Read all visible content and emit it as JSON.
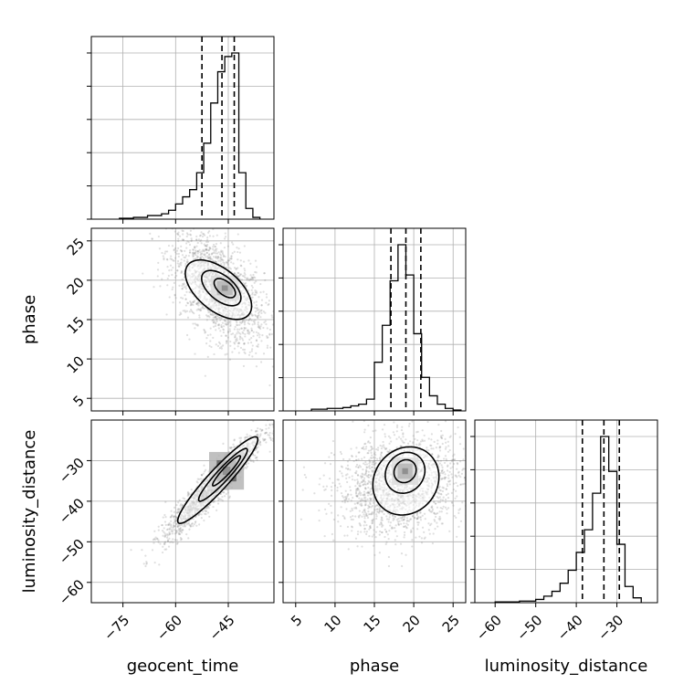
{
  "chart_data": {
    "type": "corner",
    "parameters": [
      "geocent_time",
      "phase",
      "luminosity_distance"
    ],
    "axis_labels": {
      "x": [
        "geocent_time",
        "phase",
        "luminosity_distance"
      ],
      "y": [
        "",
        "phase",
        "luminosity_distance"
      ]
    },
    "ranges": {
      "geocent_time": [
        -84,
        -32
      ],
      "phase": [
        3.4,
        26.6
      ],
      "luminosity_distance": [
        -65,
        -20
      ]
    },
    "ticks": {
      "geocent_time": [
        -75,
        -60,
        -45
      ],
      "phase": [
        5,
        10,
        15,
        20,
        25
      ],
      "luminosity_distance": [
        -60,
        -50,
        -40,
        -30
      ]
    },
    "tick_labels": {
      "geocent_time": [
        "−75",
        "−60",
        "−45"
      ],
      "phase": [
        "5",
        "10",
        "15",
        "20",
        "25"
      ],
      "luminosity_distance": [
        "−60",
        "−50",
        "−40",
        "−30"
      ]
    },
    "quantiles": {
      "geocent_time": [
        -52.5,
        -46.8,
        -43.3
      ],
      "phase": [
        17.1,
        19.0,
        20.9
      ],
      "luminosity_distance": [
        -38.5,
        -33.2,
        -29.4
      ]
    },
    "histograms": {
      "geocent_time": {
        "edges": [
          -76,
          -72,
          -68,
          -64,
          -62,
          -60,
          -58,
          -56,
          -54,
          -52,
          -50,
          -48,
          -46,
          -44,
          -42,
          -40,
          -38,
          -36
        ],
        "counts": [
          1,
          2,
          4,
          6,
          10,
          17,
          25,
          33,
          52,
          85,
          130,
          165,
          182,
          186,
          52,
          12,
          2
        ]
      },
      "phase": {
        "edges": [
          7,
          9,
          11,
          12,
          13,
          14,
          15,
          16,
          17,
          18,
          19,
          20,
          21,
          22,
          23,
          24,
          25,
          26
        ],
        "counts": [
          2,
          3,
          4,
          6,
          8,
          14,
          58,
          102,
          155,
          198,
          162,
          92,
          40,
          18,
          8,
          3,
          1
        ]
      },
      "luminosity_distance": {
        "edges": [
          -60,
          -54,
          -50,
          -48,
          -46,
          -44,
          -42,
          -40,
          -38,
          -36,
          -34,
          -32,
          -30,
          -28,
          -26,
          -24
        ],
        "counts": [
          1,
          2,
          4,
          8,
          14,
          24,
          40,
          62,
          90,
          135,
          205,
          162,
          72,
          20,
          6
        ]
      }
    },
    "scatter": [
      {
        "x_param": "geocent_time",
        "y_param": "phase",
        "mean": [
          -47.8,
          18.8
        ],
        "sd": [
          6.5,
          3.6
        ],
        "corr": -0.55,
        "points": 1800,
        "contour_levels": [
          {
            "mean": [
              -47.8,
              18.8
            ],
            "sd": [
              5.0,
              2.0
            ],
            "corr": -0.55,
            "k": 1.18
          },
          {
            "mean": [
              -47.0,
              19.0
            ],
            "sd": [
              5.0,
              2.0
            ],
            "corr": -0.55,
            "k": 0.7
          },
          {
            "mean": [
              -46.0,
              19.0
            ],
            "sd": [
              5.0,
              2.0
            ],
            "corr": -0.55,
            "k": 0.38
          }
        ]
      },
      {
        "x_param": "geocent_time",
        "y_param": "luminosity_distance",
        "mean": [
          -49.0,
          -36.0
        ],
        "sd": [
          7.0,
          6.5
        ],
        "corr": 0.94,
        "points": 1800,
        "contour_levels": [
          {
            "mean": [
              -48.0,
              -34.8
            ],
            "sd": [
              6.2,
              5.8
            ],
            "corr": 0.94,
            "k": 1.15
          },
          {
            "mean": [
              -46.5,
              -33.5
            ],
            "sd": [
              6.2,
              5.8
            ],
            "corr": 0.94,
            "k": 0.7
          },
          {
            "mean": [
              -45.5,
              -32.5
            ],
            "sd": [
              6.2,
              5.8
            ],
            "corr": 0.94,
            "k": 0.4
          }
        ]
      },
      {
        "x_param": "phase",
        "y_param": "luminosity_distance",
        "mean": [
          18.2,
          -36.0
        ],
        "sd": [
          4.0,
          6.0
        ],
        "corr": 0.15,
        "points": 1800,
        "contour_levels": [
          {
            "mean": [
              19.0,
              -35.0
            ],
            "sd": [
              2.1,
              4.2
            ],
            "corr": 0.12,
            "k": 1.25
          },
          {
            "mean": [
              18.9,
              -33.0
            ],
            "sd": [
              2.1,
              4.2
            ],
            "corr": 0.12,
            "k": 0.75
          },
          {
            "mean": [
              18.9,
              -32.6
            ],
            "sd": [
              2.1,
              4.2
            ],
            "corr": 0.12,
            "k": 0.42
          }
        ]
      }
    ],
    "grid": true,
    "colors": {
      "line": "#000000",
      "grid": "#b0b0b0",
      "points": "#808080"
    }
  }
}
